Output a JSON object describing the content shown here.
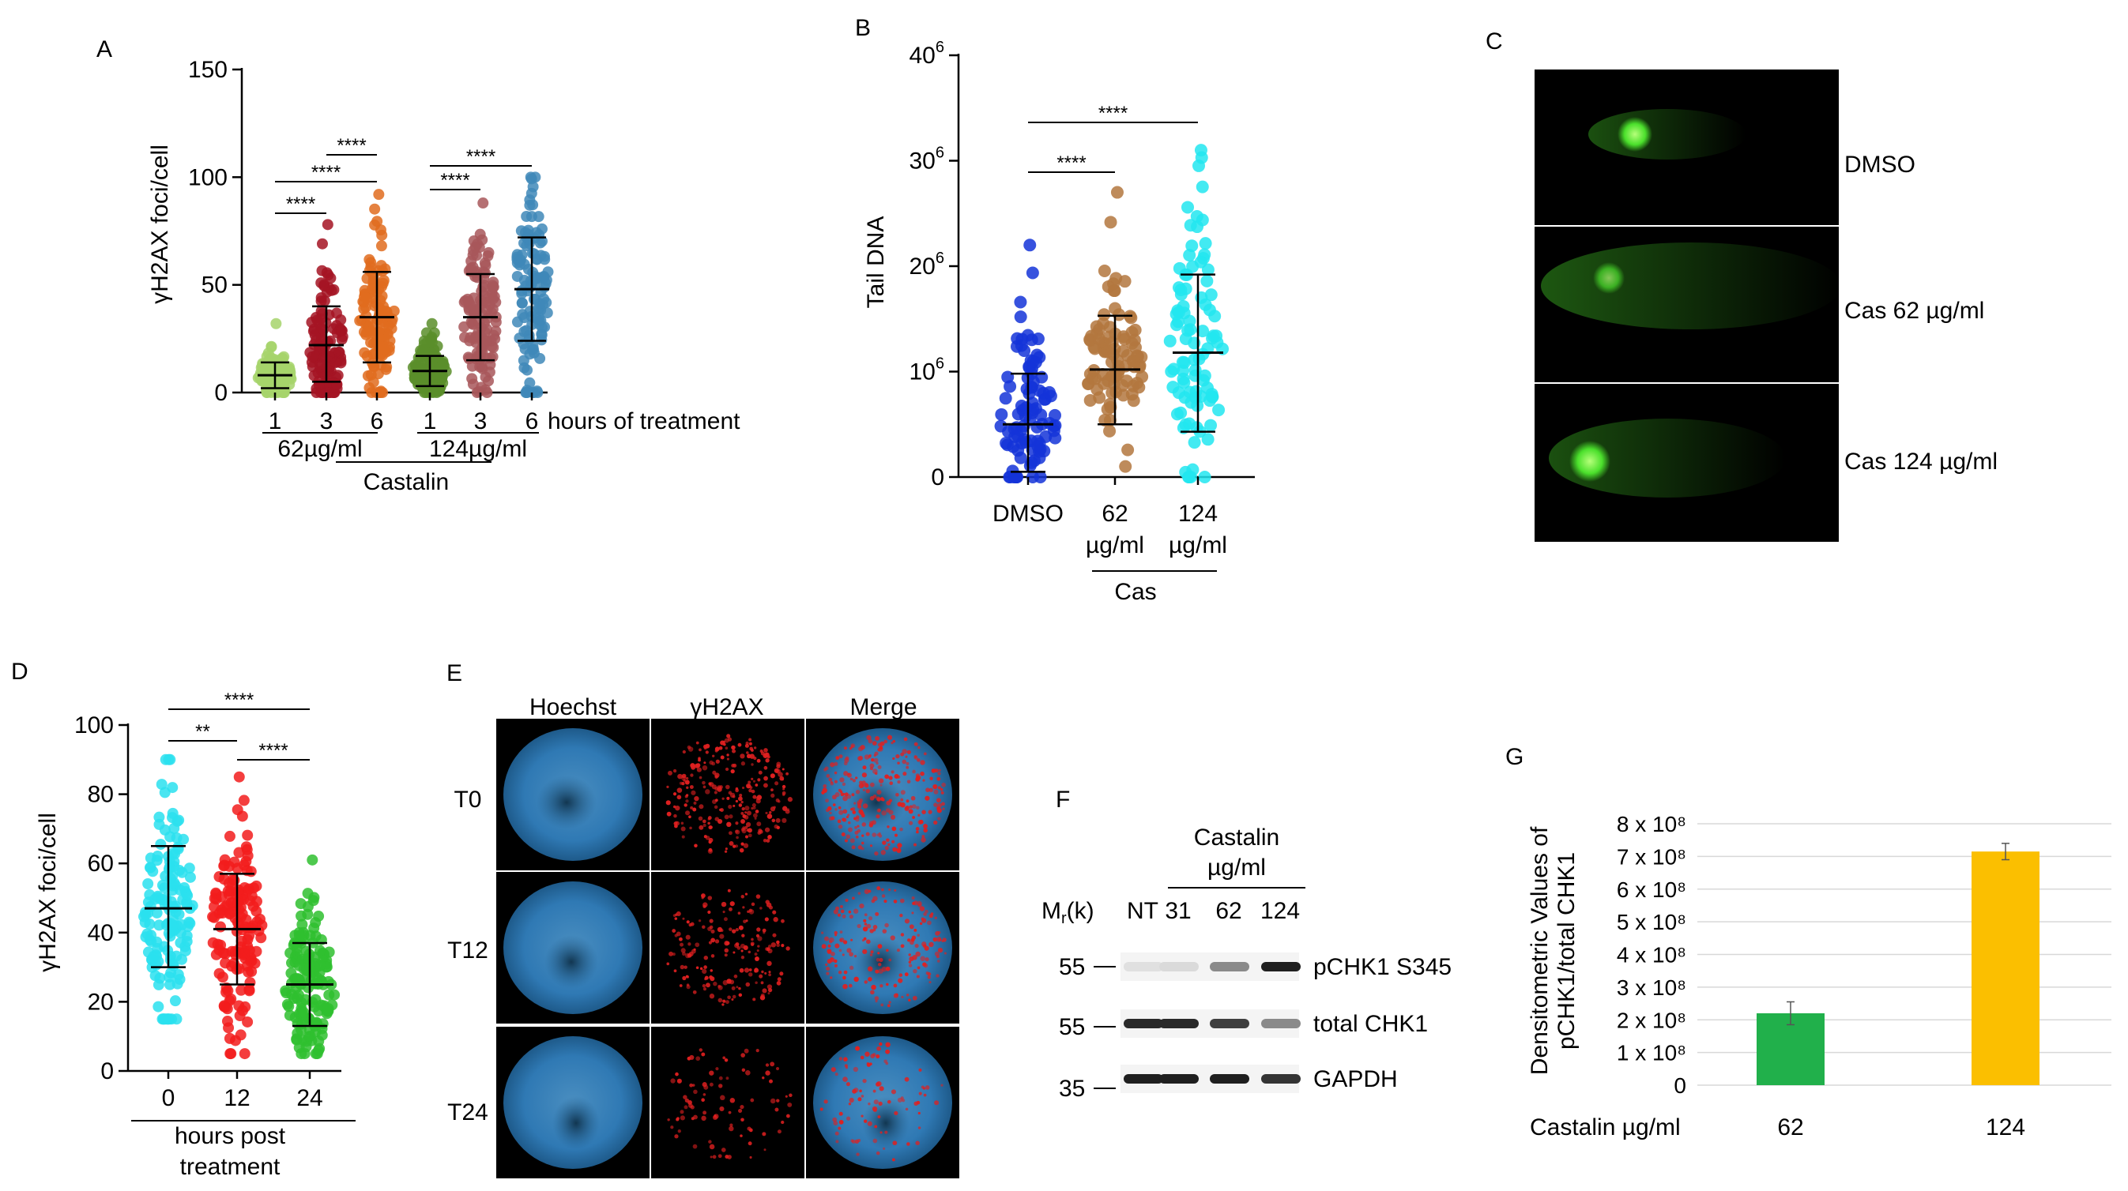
{
  "colors": {
    "a_1_62": "#a6d36b",
    "a_3_62": "#a51423",
    "a_6_62": "#e06c1f",
    "a_1_124": "#5a8e2a",
    "a_3_124": "#a8575b",
    "a_6_124": "#3f88b8",
    "b_dmso": "#1434d8",
    "b_62": "#b3773e",
    "b_124": "#22e6f0",
    "d_0": "#2ae0ee",
    "d_12": "#f21c1c",
    "d_24": "#2fc02f",
    "g_62": "#21b04b",
    "g_124": "#fbbf00",
    "comet": "#4be02c"
  },
  "panels": {
    "A": {
      "letter": "A",
      "chart_data": {
        "type": "scatter",
        "ylabel": "γH2AX foci/cell",
        "ylim": [
          0,
          150
        ],
        "yticks": [
          "0",
          "50",
          "100",
          "150"
        ],
        "categories": [
          "1",
          "3",
          "6",
          "1",
          "3",
          "6"
        ],
        "x_suffix": "hours of treatment",
        "group_labels": [
          "62µg/ml",
          "124µg/ml"
        ],
        "outer_label": "Castalin",
        "series": [
          {
            "x": "1",
            "group": "62µg/ml",
            "mean": 8,
            "sd_low": 2,
            "sd_high": 14,
            "min": 0,
            "max": 32
          },
          {
            "x": "3",
            "group": "62µg/ml",
            "mean": 22,
            "sd_low": 5,
            "sd_high": 40,
            "min": 0,
            "max": 78
          },
          {
            "x": "6",
            "group": "62µg/ml",
            "mean": 35,
            "sd_low": 14,
            "sd_high": 56,
            "min": 0,
            "max": 92
          },
          {
            "x": "1",
            "group": "124µg/ml",
            "mean": 10,
            "sd_low": 3,
            "sd_high": 17,
            "min": 0,
            "max": 32
          },
          {
            "x": "3",
            "group": "124µg/ml",
            "mean": 35,
            "sd_low": 15,
            "sd_high": 55,
            "min": 0,
            "max": 88
          },
          {
            "x": "6",
            "group": "124µg/ml",
            "mean": 48,
            "sd_low": 24,
            "sd_high": 72,
            "min": 0,
            "max": 100
          }
        ],
        "significance": [
          {
            "from": 0,
            "to": 1,
            "label": "****"
          },
          {
            "from": 0,
            "to": 2,
            "label": "****"
          },
          {
            "from": 1,
            "to": 2,
            "label": "****"
          },
          {
            "from": 3,
            "to": 4,
            "label": "****"
          },
          {
            "from": 3,
            "to": 5,
            "label": "****"
          }
        ]
      }
    },
    "B": {
      "letter": "B",
      "chart_data": {
        "type": "scatter",
        "ylabel": "Tail DNA",
        "yticks": [
          {
            "base": "0",
            "exp": ""
          },
          {
            "base": "10",
            "exp": "6"
          },
          {
            "base": "20",
            "exp": "6"
          },
          {
            "base": "30",
            "exp": "6"
          },
          {
            "base": "40",
            "exp": "6"
          }
        ],
        "ylim": [
          0,
          40
        ],
        "categories": [
          {
            "l1": "DMSO",
            "l2": ""
          },
          {
            "l1": "62",
            "l2": "µg/ml"
          },
          {
            "l1": "124",
            "l2": "µg/ml"
          }
        ],
        "group_label": "Cas",
        "series": [
          {
            "x": "DMSO",
            "mean": 5,
            "sd_low": 0.5,
            "sd_high": 9.8,
            "min": 0,
            "max": 22
          },
          {
            "x": "62 µg/ml",
            "mean": 10.2,
            "sd_low": 5,
            "sd_high": 15.3,
            "min": 1,
            "max": 27
          },
          {
            "x": "124 µg/ml",
            "mean": 11.8,
            "sd_low": 4.3,
            "sd_high": 19.2,
            "min": 0,
            "max": 31
          }
        ],
        "significance": [
          {
            "from": 0,
            "to": 1,
            "label": "****"
          },
          {
            "from": 0,
            "to": 2,
            "label": "****"
          }
        ]
      }
    },
    "C": {
      "letter": "C",
      "rows": [
        "DMSO",
        "Cas 62 µg/ml",
        "Cas 124 µg/ml"
      ]
    },
    "D": {
      "letter": "D",
      "chart_data": {
        "type": "scatter",
        "ylabel": "γH2AX foci/cell",
        "ylim": [
          0,
          100
        ],
        "yticks": [
          "0",
          "20",
          "40",
          "60",
          "80",
          "100"
        ],
        "categories": [
          "0",
          "12",
          "24"
        ],
        "xlabel": "hours post treatment",
        "series": [
          {
            "x": "0",
            "mean": 47,
            "sd_low": 30,
            "sd_high": 65,
            "min": 15,
            "max": 90
          },
          {
            "x": "12",
            "mean": 41,
            "sd_low": 25,
            "sd_high": 57,
            "min": 5,
            "max": 85
          },
          {
            "x": "24",
            "mean": 25,
            "sd_low": 13,
            "sd_high": 37,
            "min": 5,
            "max": 61
          }
        ],
        "significance": [
          {
            "from": 0,
            "to": 1,
            "label": "**"
          },
          {
            "from": 0,
            "to": 2,
            "label": "****"
          },
          {
            "from": 1,
            "to": 2,
            "label": "****"
          }
        ]
      }
    },
    "E": {
      "letter": "E",
      "columns": [
        "Hoechst",
        "γH2AX",
        "Merge"
      ],
      "rows": [
        "T0",
        "T12",
        "T24"
      ]
    },
    "F": {
      "letter": "F",
      "title_l1": "Castalin",
      "title_l2": "µg/ml",
      "mr_label": "Mr(k)",
      "lanes": [
        "NT",
        "31",
        "62",
        "124"
      ],
      "markers": [
        "55",
        "55",
        "35"
      ],
      "bands": [
        "pCHK1 S345",
        "total CHK1",
        "GAPDH"
      ],
      "band_intensity": {
        "pCHK1 S345": [
          0.05,
          0.08,
          0.45,
          0.95
        ],
        "total CHK1": [
          0.9,
          0.9,
          0.8,
          0.45
        ],
        "GAPDH": [
          0.95,
          0.95,
          0.95,
          0.85
        ]
      }
    },
    "G": {
      "letter": "G",
      "chart_data": {
        "type": "bar",
        "ylabel_l1": "Densitometric Values of",
        "ylabel_l2": "pCHK1/total CHK1",
        "ylim": [
          0,
          8
        ],
        "yticks": [
          {
            "v": 0,
            "label": "0"
          },
          {
            "v": 1,
            "label": "1 x 10⁸"
          },
          {
            "v": 2,
            "label": "2 x 10⁸"
          },
          {
            "v": 3,
            "label": "3 x 10⁸"
          },
          {
            "v": 4,
            "label": "4 x 10⁸"
          },
          {
            "v": 5,
            "label": "5 x 10⁸"
          },
          {
            "v": 6,
            "label": "6 x 10⁸"
          },
          {
            "v": 7,
            "label": "7 x 10⁸"
          },
          {
            "v": 8,
            "label": "8 x 10⁸"
          }
        ],
        "xlabel": "Castalin µg/ml",
        "categories": [
          "62",
          "124"
        ],
        "values": [
          2.2,
          7.15
        ],
        "errors": [
          0.35,
          0.25
        ]
      }
    }
  }
}
